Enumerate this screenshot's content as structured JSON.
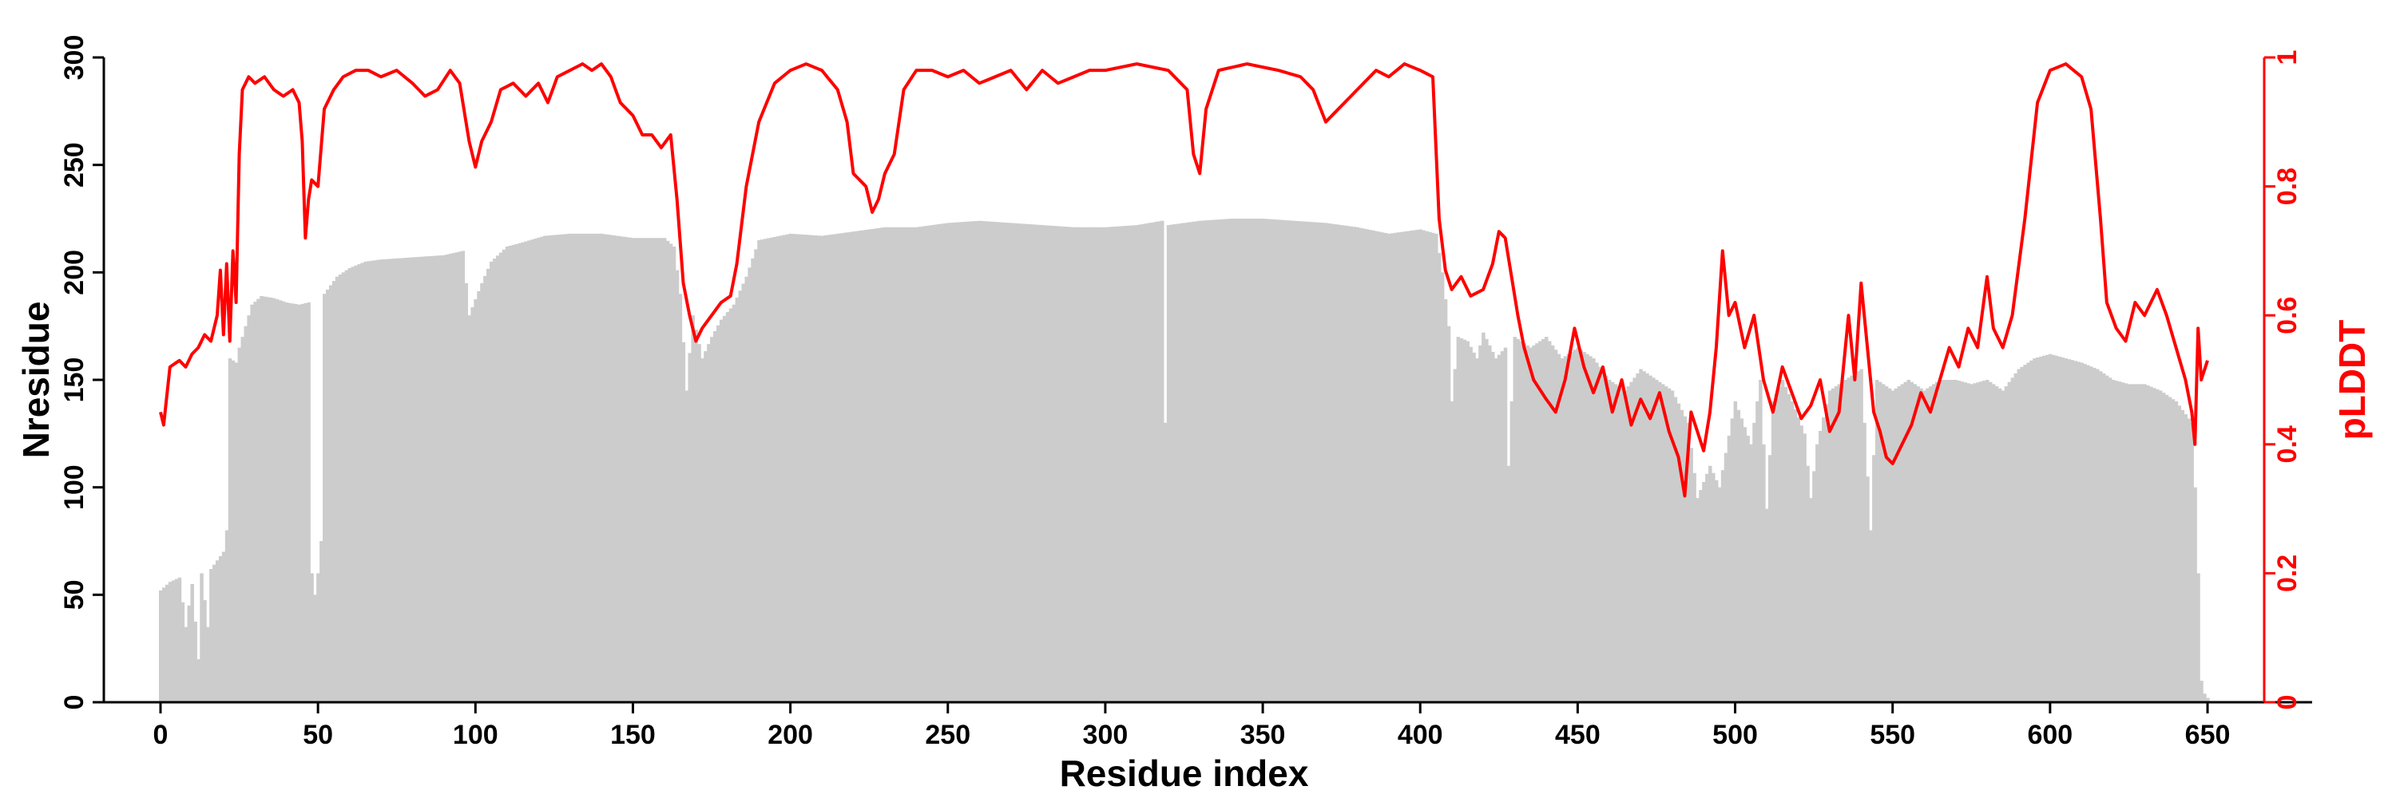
{
  "colors": {
    "bars": "#cccccc",
    "line": "#ff0000",
    "axis": "#000000",
    "right_axis": "#ff0000"
  },
  "chart_data": {
    "type": "bar",
    "xlabel": "Residue index",
    "ylabel": "Nresidue",
    "ylabel_right": "pLDDT",
    "xlim": [
      0,
      650
    ],
    "ylim": [
      0,
      300
    ],
    "ylim_right": [
      0,
      1
    ],
    "grid": false,
    "legend": "none",
    "xticks": [
      0,
      50,
      100,
      150,
      200,
      250,
      300,
      350,
      400,
      450,
      500,
      550,
      600,
      650
    ],
    "yticks": [
      0,
      50,
      100,
      150,
      200,
      250,
      300
    ],
    "yticks_right": [
      0,
      0.2,
      0.4,
      0.6,
      0.8,
      1
    ],
    "bar_series_profile": [
      [
        0,
        52
      ],
      [
        3,
        56
      ],
      [
        6,
        58
      ],
      [
        8,
        35
      ],
      [
        10,
        55
      ],
      [
        12,
        20
      ],
      [
        13,
        60
      ],
      [
        15,
        35
      ],
      [
        16,
        62
      ],
      [
        18,
        66
      ],
      [
        20,
        70
      ],
      [
        21,
        80
      ],
      [
        22,
        160
      ],
      [
        24,
        158
      ],
      [
        25,
        165
      ],
      [
        27,
        175
      ],
      [
        29,
        185
      ],
      [
        32,
        189
      ],
      [
        36,
        188
      ],
      [
        40,
        186
      ],
      [
        44,
        185
      ],
      [
        47,
        186
      ],
      [
        48,
        60
      ],
      [
        49,
        50
      ],
      [
        50,
        60
      ],
      [
        51,
        75
      ],
      [
        52,
        190
      ],
      [
        56,
        198
      ],
      [
        60,
        202
      ],
      [
        65,
        205
      ],
      [
        70,
        206
      ],
      [
        80,
        207
      ],
      [
        90,
        208
      ],
      [
        96,
        210
      ],
      [
        98,
        180
      ],
      [
        102,
        195
      ],
      [
        105,
        205
      ],
      [
        110,
        212
      ],
      [
        115,
        214
      ],
      [
        122,
        217
      ],
      [
        130,
        218
      ],
      [
        140,
        218
      ],
      [
        150,
        216
      ],
      [
        160,
        216
      ],
      [
        163,
        212
      ],
      [
        165,
        190
      ],
      [
        167,
        145
      ],
      [
        169,
        180
      ],
      [
        172,
        160
      ],
      [
        175,
        170
      ],
      [
        178,
        178
      ],
      [
        182,
        185
      ],
      [
        186,
        198
      ],
      [
        190,
        215
      ],
      [
        200,
        218
      ],
      [
        210,
        217
      ],
      [
        220,
        219
      ],
      [
        230,
        221
      ],
      [
        240,
        221
      ],
      [
        250,
        223
      ],
      [
        260,
        224
      ],
      [
        270,
        223
      ],
      [
        280,
        222
      ],
      [
        290,
        221
      ],
      [
        300,
        221
      ],
      [
        310,
        222
      ],
      [
        318,
        224
      ],
      [
        319,
        130
      ],
      [
        320,
        222
      ],
      [
        330,
        224
      ],
      [
        340,
        225
      ],
      [
        350,
        225
      ],
      [
        360,
        224
      ],
      [
        370,
        223
      ],
      [
        380,
        221
      ],
      [
        390,
        218
      ],
      [
        400,
        220
      ],
      [
        405,
        218
      ],
      [
        407,
        200
      ],
      [
        409,
        175
      ],
      [
        410,
        140
      ],
      [
        412,
        170
      ],
      [
        415,
        168
      ],
      [
        418,
        160
      ],
      [
        420,
        172
      ],
      [
        424,
        160
      ],
      [
        427,
        165
      ],
      [
        428,
        110
      ],
      [
        430,
        170
      ],
      [
        435,
        165
      ],
      [
        440,
        170
      ],
      [
        445,
        160
      ],
      [
        450,
        165
      ],
      [
        455,
        160
      ],
      [
        460,
        150
      ],
      [
        465,
        145
      ],
      [
        470,
        155
      ],
      [
        475,
        150
      ],
      [
        480,
        145
      ],
      [
        485,
        130
      ],
      [
        488,
        95
      ],
      [
        492,
        110
      ],
      [
        495,
        100
      ],
      [
        500,
        140
      ],
      [
        505,
        120
      ],
      [
        508,
        150
      ],
      [
        510,
        90
      ],
      [
        512,
        140
      ],
      [
        515,
        150
      ],
      [
        518,
        140
      ],
      [
        522,
        125
      ],
      [
        524,
        95
      ],
      [
        526,
        120
      ],
      [
        530,
        145
      ],
      [
        535,
        150
      ],
      [
        540,
        155
      ],
      [
        543,
        80
      ],
      [
        545,
        150
      ],
      [
        550,
        145
      ],
      [
        555,
        150
      ],
      [
        560,
        145
      ],
      [
        565,
        150
      ],
      [
        570,
        150
      ],
      [
        575,
        148
      ],
      [
        580,
        150
      ],
      [
        585,
        145
      ],
      [
        590,
        155
      ],
      [
        595,
        160
      ],
      [
        600,
        162
      ],
      [
        605,
        160
      ],
      [
        610,
        158
      ],
      [
        615,
        155
      ],
      [
        620,
        150
      ],
      [
        625,
        148
      ],
      [
        630,
        148
      ],
      [
        635,
        145
      ],
      [
        640,
        140
      ],
      [
        645,
        130
      ],
      [
        646,
        100
      ],
      [
        647,
        60
      ],
      [
        648,
        10
      ],
      [
        649,
        4
      ],
      [
        650,
        2
      ]
    ],
    "line_series_profile": [
      [
        0,
        0.45
      ],
      [
        1,
        0.43
      ],
      [
        3,
        0.52
      ],
      [
        6,
        0.53
      ],
      [
        8,
        0.52
      ],
      [
        10,
        0.54
      ],
      [
        12,
        0.55
      ],
      [
        14,
        0.57
      ],
      [
        16,
        0.56
      ],
      [
        18,
        0.6
      ],
      [
        19,
        0.67
      ],
      [
        20,
        0.57
      ],
      [
        21,
        0.68
      ],
      [
        22,
        0.56
      ],
      [
        23,
        0.7
      ],
      [
        24,
        0.62
      ],
      [
        25,
        0.85
      ],
      [
        26,
        0.95
      ],
      [
        28,
        0.97
      ],
      [
        30,
        0.96
      ],
      [
        33,
        0.97
      ],
      [
        36,
        0.95
      ],
      [
        39,
        0.94
      ],
      [
        42,
        0.95
      ],
      [
        44,
        0.93
      ],
      [
        45,
        0.87
      ],
      [
        46,
        0.72
      ],
      [
        47,
        0.78
      ],
      [
        48,
        0.81
      ],
      [
        50,
        0.8
      ],
      [
        52,
        0.92
      ],
      [
        55,
        0.95
      ],
      [
        58,
        0.97
      ],
      [
        62,
        0.98
      ],
      [
        66,
        0.98
      ],
      [
        70,
        0.97
      ],
      [
        75,
        0.98
      ],
      [
        80,
        0.96
      ],
      [
        84,
        0.94
      ],
      [
        88,
        0.95
      ],
      [
        92,
        0.98
      ],
      [
        95,
        0.96
      ],
      [
        98,
        0.87
      ],
      [
        100,
        0.83
      ],
      [
        102,
        0.87
      ],
      [
        105,
        0.9
      ],
      [
        108,
        0.95
      ],
      [
        112,
        0.96
      ],
      [
        116,
        0.94
      ],
      [
        120,
        0.96
      ],
      [
        123,
        0.93
      ],
      [
        126,
        0.97
      ],
      [
        130,
        0.98
      ],
      [
        134,
        0.99
      ],
      [
        137,
        0.98
      ],
      [
        140,
        0.99
      ],
      [
        143,
        0.97
      ],
      [
        146,
        0.93
      ],
      [
        150,
        0.91
      ],
      [
        153,
        0.88
      ],
      [
        156,
        0.88
      ],
      [
        159,
        0.86
      ],
      [
        162,
        0.88
      ],
      [
        164,
        0.78
      ],
      [
        166,
        0.65
      ],
      [
        168,
        0.6
      ],
      [
        170,
        0.56
      ],
      [
        172,
        0.58
      ],
      [
        175,
        0.6
      ],
      [
        178,
        0.62
      ],
      [
        181,
        0.63
      ],
      [
        183,
        0.68
      ],
      [
        186,
        0.8
      ],
      [
        190,
        0.9
      ],
      [
        195,
        0.96
      ],
      [
        200,
        0.98
      ],
      [
        205,
        0.99
      ],
      [
        210,
        0.98
      ],
      [
        215,
        0.95
      ],
      [
        218,
        0.9
      ],
      [
        220,
        0.82
      ],
      [
        224,
        0.8
      ],
      [
        226,
        0.76
      ],
      [
        228,
        0.78
      ],
      [
        230,
        0.82
      ],
      [
        233,
        0.85
      ],
      [
        236,
        0.95
      ],
      [
        240,
        0.98
      ],
      [
        245,
        0.98
      ],
      [
        250,
        0.97
      ],
      [
        255,
        0.98
      ],
      [
        260,
        0.96
      ],
      [
        265,
        0.97
      ],
      [
        270,
        0.98
      ],
      [
        275,
        0.95
      ],
      [
        280,
        0.98
      ],
      [
        285,
        0.96
      ],
      [
        290,
        0.97
      ],
      [
        295,
        0.98
      ],
      [
        300,
        0.98
      ],
      [
        310,
        0.99
      ],
      [
        320,
        0.98
      ],
      [
        326,
        0.95
      ],
      [
        328,
        0.85
      ],
      [
        330,
        0.82
      ],
      [
        332,
        0.92
      ],
      [
        336,
        0.98
      ],
      [
        345,
        0.99
      ],
      [
        355,
        0.98
      ],
      [
        362,
        0.97
      ],
      [
        366,
        0.95
      ],
      [
        370,
        0.9
      ],
      [
        374,
        0.92
      ],
      [
        378,
        0.94
      ],
      [
        382,
        0.96
      ],
      [
        386,
        0.98
      ],
      [
        390,
        0.97
      ],
      [
        395,
        0.99
      ],
      [
        400,
        0.98
      ],
      [
        404,
        0.97
      ],
      [
        406,
        0.75
      ],
      [
        408,
        0.67
      ],
      [
        410,
        0.64
      ],
      [
        413,
        0.66
      ],
      [
        416,
        0.63
      ],
      [
        420,
        0.64
      ],
      [
        423,
        0.68
      ],
      [
        425,
        0.73
      ],
      [
        427,
        0.72
      ],
      [
        429,
        0.66
      ],
      [
        431,
        0.6
      ],
      [
        433,
        0.55
      ],
      [
        436,
        0.5
      ],
      [
        440,
        0.47
      ],
      [
        443,
        0.45
      ],
      [
        446,
        0.5
      ],
      [
        449,
        0.58
      ],
      [
        452,
        0.52
      ],
      [
        455,
        0.48
      ],
      [
        458,
        0.52
      ],
      [
        461,
        0.45
      ],
      [
        464,
        0.5
      ],
      [
        467,
        0.43
      ],
      [
        470,
        0.47
      ],
      [
        473,
        0.44
      ],
      [
        476,
        0.48
      ],
      [
        479,
        0.42
      ],
      [
        482,
        0.38
      ],
      [
        484,
        0.32
      ],
      [
        486,
        0.45
      ],
      [
        488,
        0.42
      ],
      [
        490,
        0.39
      ],
      [
        492,
        0.45
      ],
      [
        494,
        0.55
      ],
      [
        496,
        0.7
      ],
      [
        498,
        0.6
      ],
      [
        500,
        0.62
      ],
      [
        503,
        0.55
      ],
      [
        506,
        0.6
      ],
      [
        509,
        0.5
      ],
      [
        512,
        0.45
      ],
      [
        515,
        0.52
      ],
      [
        518,
        0.48
      ],
      [
        521,
        0.44
      ],
      [
        524,
        0.46
      ],
      [
        527,
        0.5
      ],
      [
        530,
        0.42
      ],
      [
        533,
        0.45
      ],
      [
        536,
        0.6
      ],
      [
        538,
        0.5
      ],
      [
        540,
        0.65
      ],
      [
        542,
        0.55
      ],
      [
        544,
        0.45
      ],
      [
        546,
        0.42
      ],
      [
        548,
        0.38
      ],
      [
        550,
        0.37
      ],
      [
        553,
        0.4
      ],
      [
        556,
        0.43
      ],
      [
        559,
        0.48
      ],
      [
        562,
        0.45
      ],
      [
        565,
        0.5
      ],
      [
        568,
        0.55
      ],
      [
        571,
        0.52
      ],
      [
        574,
        0.58
      ],
      [
        577,
        0.55
      ],
      [
        580,
        0.66
      ],
      [
        582,
        0.58
      ],
      [
        585,
        0.55
      ],
      [
        588,
        0.6
      ],
      [
        592,
        0.75
      ],
      [
        596,
        0.93
      ],
      [
        600,
        0.98
      ],
      [
        605,
        0.99
      ],
      [
        610,
        0.97
      ],
      [
        613,
        0.92
      ],
      [
        616,
        0.75
      ],
      [
        618,
        0.62
      ],
      [
        621,
        0.58
      ],
      [
        624,
        0.56
      ],
      [
        627,
        0.62
      ],
      [
        630,
        0.6
      ],
      [
        634,
        0.64
      ],
      [
        637,
        0.6
      ],
      [
        640,
        0.55
      ],
      [
        643,
        0.5
      ],
      [
        645,
        0.45
      ],
      [
        646,
        0.4
      ],
      [
        647,
        0.58
      ],
      [
        648,
        0.5
      ],
      [
        650,
        0.53
      ]
    ]
  }
}
